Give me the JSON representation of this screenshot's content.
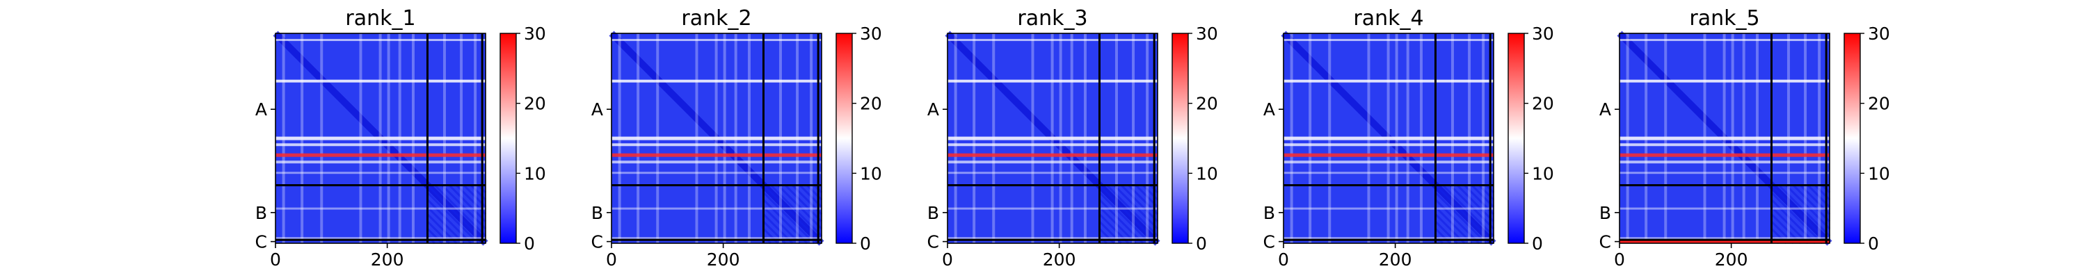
{
  "chart_data": {
    "type": "heatmap",
    "colormap": "bwr",
    "color_low": "#0000ff",
    "color_mid": "#ffffff",
    "color_high": "#ff0000",
    "color_range": [
      0,
      30
    ],
    "colorbar_ticks": [
      "0",
      "10",
      "20",
      "30"
    ],
    "x_ticks": [
      0,
      200
    ],
    "x_tick_labels": [
      "0",
      "200"
    ],
    "y_tick_labels": [
      "A",
      "B",
      "C"
    ],
    "xlim": [
      0,
      376
    ],
    "chain_boundaries": [
      272,
      370
    ],
    "residue_count": 376,
    "panels": [
      {
        "title": "rank_1",
        "bottom_strip_high": false
      },
      {
        "title": "rank_2",
        "bottom_strip_high": false
      },
      {
        "title": "rank_3",
        "bottom_strip_high": false
      },
      {
        "title": "rank_4",
        "bottom_strip_high": false
      },
      {
        "title": "rank_5",
        "bottom_strip_high": true
      }
    ]
  }
}
